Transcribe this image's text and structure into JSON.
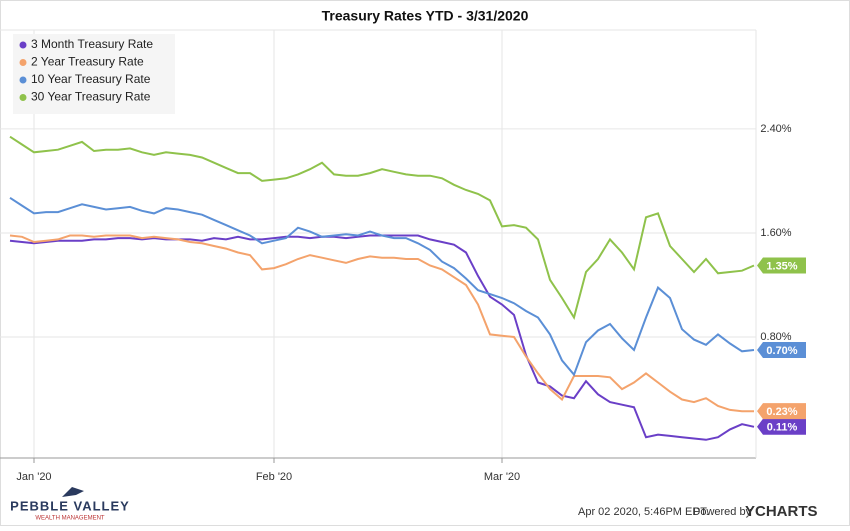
{
  "chart_data": {
    "type": "line",
    "title": "Treasury Rates YTD - 3/31/2020",
    "categories": [
      null,
      null,
      "Jan '20",
      null,
      null,
      null,
      null,
      null,
      null,
      null,
      null,
      null,
      null,
      null,
      null,
      null,
      null,
      null,
      null,
      null,
      null,
      null,
      "Feb '20",
      null,
      null,
      null,
      null,
      null,
      null,
      null,
      null,
      null,
      null,
      null,
      null,
      null,
      null,
      null,
      null,
      null,
      null,
      "Mar '20",
      null,
      null,
      null,
      null,
      null,
      null,
      null,
      null,
      null,
      null,
      null,
      null,
      null,
      null,
      null,
      null,
      null,
      null,
      null,
      null,
      null
    ],
    "series": [
      {
        "name": "3 Month Treasury Rate",
        "color": "#6a3fc7",
        "last_label": "0.11%",
        "values": [
          1.54,
          1.53,
          1.52,
          1.53,
          1.54,
          1.54,
          1.54,
          1.55,
          1.55,
          1.56,
          1.56,
          1.55,
          1.56,
          1.55,
          1.55,
          1.55,
          1.54,
          1.56,
          1.55,
          1.57,
          1.55,
          1.55,
          1.56,
          1.57,
          1.57,
          1.56,
          1.57,
          1.57,
          1.56,
          1.57,
          1.58,
          1.58,
          1.58,
          1.58,
          1.58,
          1.55,
          1.53,
          1.51,
          1.45,
          1.27,
          1.11,
          1.05,
          0.97,
          0.66,
          0.45,
          0.42,
          0.35,
          0.33,
          0.46,
          0.36,
          0.3,
          0.28,
          0.26,
          0.03,
          0.05,
          0.04,
          0.03,
          0.02,
          0.01,
          0.03,
          0.09,
          0.13,
          0.11
        ]
      },
      {
        "name": "2 Year Treasury Rate",
        "color": "#f4a36c",
        "last_label": "0.23%",
        "values": [
          1.58,
          1.57,
          1.53,
          1.54,
          1.55,
          1.58,
          1.58,
          1.57,
          1.58,
          1.58,
          1.58,
          1.56,
          1.57,
          1.56,
          1.55,
          1.53,
          1.52,
          1.5,
          1.48,
          1.45,
          1.43,
          1.32,
          1.33,
          1.36,
          1.4,
          1.43,
          1.41,
          1.39,
          1.37,
          1.4,
          1.42,
          1.41,
          1.41,
          1.4,
          1.4,
          1.35,
          1.32,
          1.26,
          1.2,
          1.05,
          0.82,
          0.81,
          0.8,
          0.65,
          0.52,
          0.4,
          0.32,
          0.5,
          0.5,
          0.5,
          0.49,
          0.4,
          0.45,
          0.52,
          0.45,
          0.38,
          0.32,
          0.3,
          0.33,
          0.27,
          0.24,
          0.23,
          0.23
        ]
      },
      {
        "name": "10 Year Treasury Rate",
        "color": "#5b8fd6",
        "last_label": "0.70%",
        "values": [
          1.87,
          1.81,
          1.75,
          1.76,
          1.76,
          1.79,
          1.82,
          1.8,
          1.78,
          1.79,
          1.8,
          1.77,
          1.75,
          1.79,
          1.78,
          1.76,
          1.74,
          1.7,
          1.66,
          1.62,
          1.58,
          1.52,
          1.54,
          1.56,
          1.64,
          1.61,
          1.57,
          1.58,
          1.59,
          1.58,
          1.61,
          1.58,
          1.56,
          1.56,
          1.52,
          1.47,
          1.38,
          1.33,
          1.25,
          1.16,
          1.13,
          1.1,
          1.06,
          1.0,
          0.95,
          0.82,
          0.62,
          0.51,
          0.76,
          0.85,
          0.9,
          0.79,
          0.7,
          0.95,
          1.18,
          1.1,
          0.86,
          0.78,
          0.74,
          0.82,
          0.75,
          0.69,
          0.7
        ]
      },
      {
        "name": "30 Year Treasury Rate",
        "color": "#8fc24b",
        "last_label": "1.35%",
        "values": [
          2.34,
          2.28,
          2.22,
          2.23,
          2.24,
          2.27,
          2.3,
          2.23,
          2.24,
          2.24,
          2.25,
          2.22,
          2.2,
          2.22,
          2.21,
          2.2,
          2.18,
          2.14,
          2.1,
          2.06,
          2.06,
          2.0,
          2.01,
          2.02,
          2.05,
          2.09,
          2.14,
          2.05,
          2.04,
          2.04,
          2.06,
          2.09,
          2.07,
          2.05,
          2.04,
          2.04,
          2.02,
          1.97,
          1.93,
          1.9,
          1.85,
          1.65,
          1.66,
          1.64,
          1.55,
          1.24,
          1.1,
          0.95,
          1.3,
          1.4,
          1.55,
          1.45,
          1.32,
          1.72,
          1.75,
          1.5,
          1.4,
          1.3,
          1.4,
          1.29,
          1.3,
          1.31,
          1.35
        ]
      }
    ],
    "ylim": [
      -0.13,
      3.16
    ],
    "yticks": [
      {
        "value": 0.8,
        "label": "0.80%"
      },
      {
        "value": 1.6,
        "label": "1.60%"
      },
      {
        "value": 2.4,
        "label": "2.40%"
      }
    ],
    "grid": true,
    "legend": "top-left"
  },
  "footer": {
    "logo": "PEBBLE VALLEY",
    "logo_sub": "WEALTH MANAGEMENT",
    "timestamp": "Apr 02 2020, 5:46PM EDT.",
    "powered": "Powered by",
    "brand": "YCHARTS"
  }
}
